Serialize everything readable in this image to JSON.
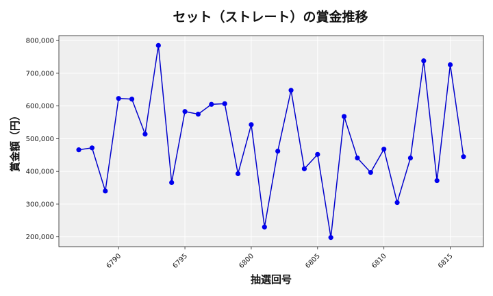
{
  "chart_data": {
    "type": "line",
    "title": "セット（ストレート）の賞金推移",
    "xlabel": "抽選回号",
    "ylabel": "賞金額（円）",
    "x": [
      6787,
      6788,
      6789,
      6790,
      6791,
      6792,
      6793,
      6794,
      6795,
      6796,
      6797,
      6798,
      6799,
      6800,
      6801,
      6802,
      6803,
      6804,
      6805,
      6806,
      6807,
      6808,
      6809,
      6810,
      6811,
      6812,
      6813,
      6814,
      6815,
      6816
    ],
    "values": [
      466000,
      472000,
      340000,
      623000,
      621000,
      514000,
      785000,
      366000,
      583000,
      575000,
      605000,
      607000,
      393000,
      543000,
      230000,
      462000,
      648000,
      408000,
      452000,
      198000,
      568000,
      441000,
      397000,
      468000,
      305000,
      441000,
      738000,
      372000,
      726000,
      445000
    ],
    "xlim": [
      6785.5,
      6817.5
    ],
    "ylim": [
      170000,
      815000
    ],
    "xticks": [
      6790,
      6795,
      6800,
      6805,
      6810,
      6815
    ],
    "yticks": [
      200000,
      300000,
      400000,
      500000,
      600000,
      700000,
      800000
    ],
    "ytick_labels": [
      "200,000",
      "300,000",
      "400,000",
      "500,000",
      "600,000",
      "700,000",
      "800,000"
    ],
    "grid": true,
    "colors": {
      "line": "#0000cc",
      "marker": "#0000ee",
      "plot_bg": "#efefef",
      "grid": "#ffffff"
    }
  }
}
